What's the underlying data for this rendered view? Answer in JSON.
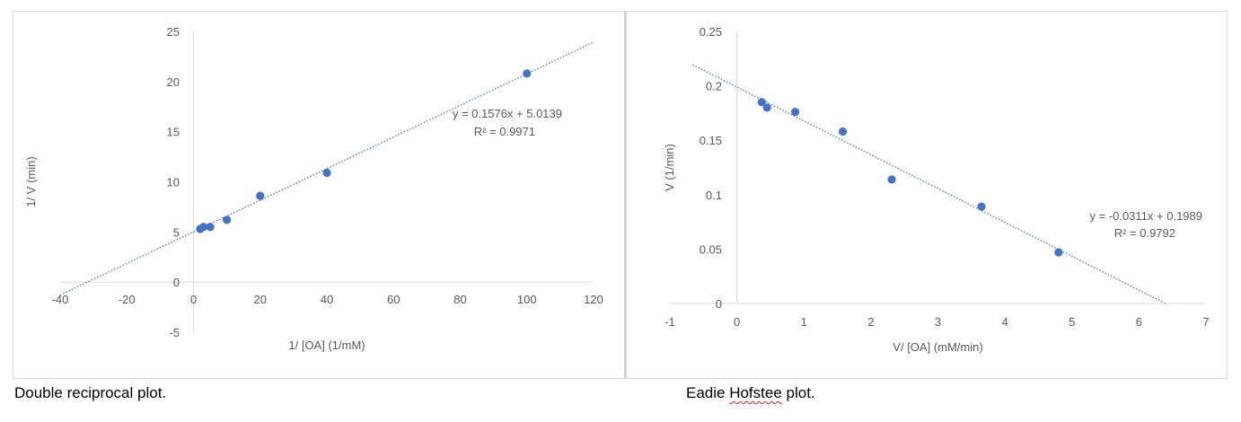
{
  "captions": {
    "left": "Double reciprocal plot.",
    "right_pre": "Eadie ",
    "right_marked": "Hofstee",
    "right_post": " plot."
  },
  "chart_data": [
    {
      "type": "scatter",
      "xlabel": "1/ [OA] (1/mM)",
      "ylabel": "1/ V (min)",
      "xlim": [
        -40,
        120
      ],
      "ylim": [
        -5,
        25
      ],
      "xticks": [
        -40,
        -20,
        0,
        20,
        40,
        60,
        80,
        100,
        120
      ],
      "yticks": [
        -5,
        0,
        5,
        10,
        15,
        20,
        25
      ],
      "points": [
        {
          "x": 2,
          "y": 5.3
        },
        {
          "x": 3,
          "y": 5.5
        },
        {
          "x": 5,
          "y": 5.5
        },
        {
          "x": 10,
          "y": 6.2
        },
        {
          "x": 20,
          "y": 8.6
        },
        {
          "x": 40,
          "y": 10.9
        },
        {
          "x": 100,
          "y": 20.8
        }
      ],
      "trendline": {
        "slope": 0.1576,
        "intercept": 5.0139,
        "x_range": [
          -40,
          120
        ]
      },
      "equation": "y = 0.1576x + 5.0139",
      "r2": "R² = 0.9971",
      "point_color": "#4472c4",
      "trend_color": "#4472c4",
      "grid": false
    },
    {
      "type": "scatter",
      "xlabel": "V/ [OA] (mM/min)",
      "ylabel": "V (1/min)",
      "xlim": [
        -1,
        7
      ],
      "ylim": [
        0,
        0.25
      ],
      "xticks": [
        -1,
        0,
        1,
        2,
        3,
        4,
        5,
        6,
        7
      ],
      "yticks": [
        0,
        0.05,
        0.1,
        0.15,
        0.2,
        0.25
      ],
      "points": [
        {
          "x": 0.37,
          "y": 0.185
        },
        {
          "x": 0.45,
          "y": 0.18
        },
        {
          "x": 0.87,
          "y": 0.176
        },
        {
          "x": 1.58,
          "y": 0.158
        },
        {
          "x": 2.31,
          "y": 0.114
        },
        {
          "x": 3.65,
          "y": 0.089
        },
        {
          "x": 4.8,
          "y": 0.047
        }
      ],
      "trendline": {
        "slope": -0.0311,
        "intercept": 0.1989,
        "x_range": [
          -0.66,
          6.4
        ]
      },
      "equation": "y = -0.0311x + 0.1989",
      "r2": "R² = 0.9792",
      "point_color": "#4472c4",
      "trend_color": "#4472c4",
      "grid": false
    }
  ]
}
